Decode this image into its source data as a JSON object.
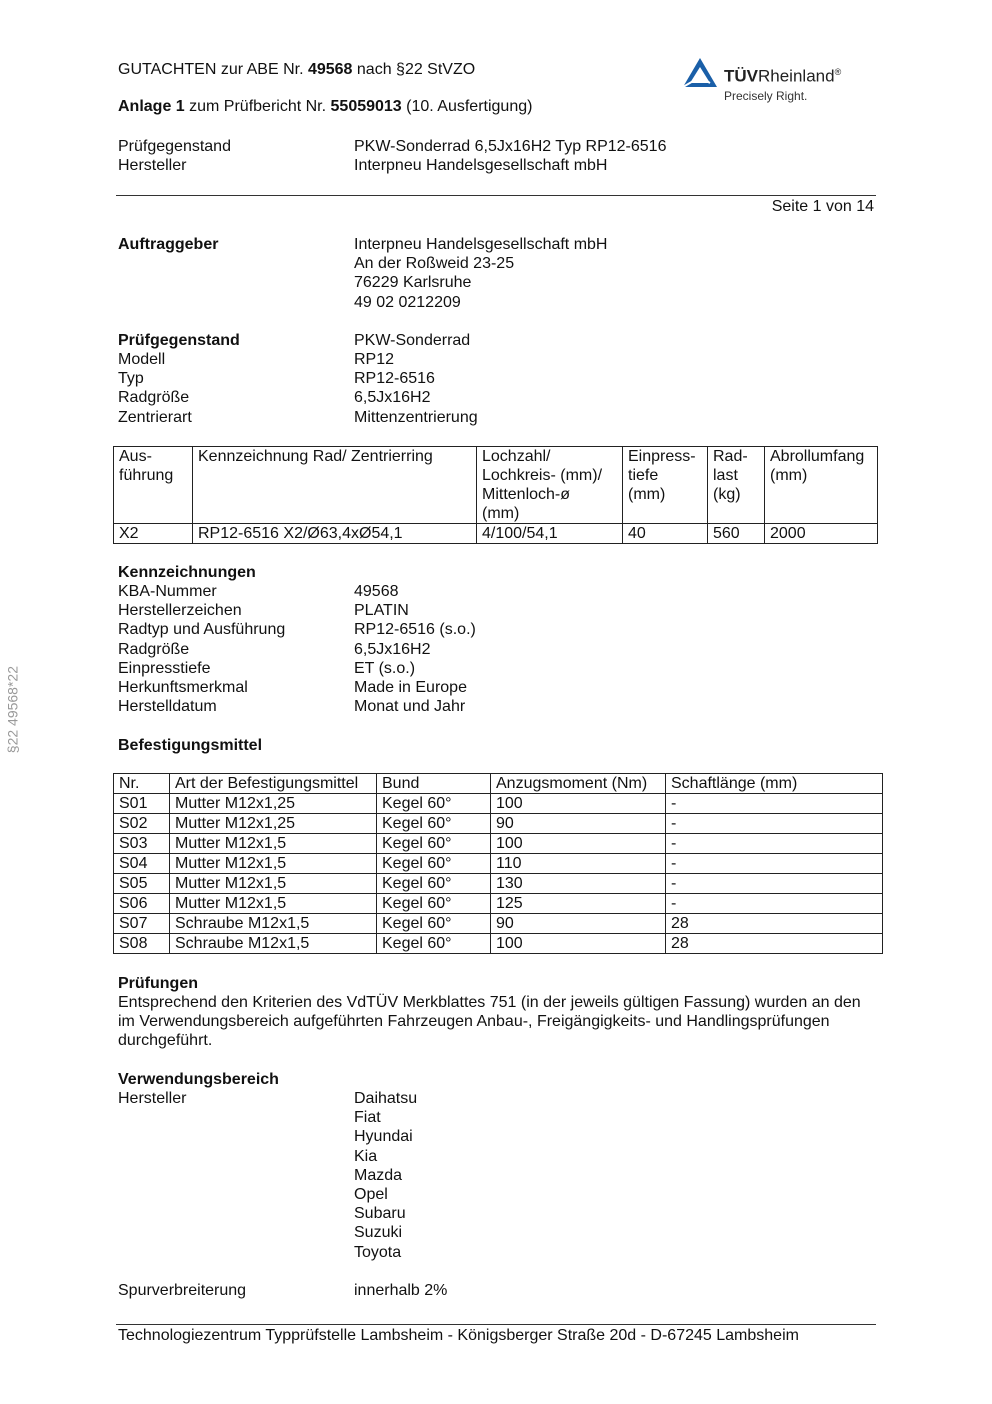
{
  "header": {
    "line1_pre": "GUTACHTEN zur ABE Nr. ",
    "line1_num": "49568",
    "line1_post": " nach §22 StVZO",
    "line2_pre": "Anlage 1",
    "line2_mid": " zum Prüfbericht Nr. ",
    "line2_num": "55059013",
    "line2_post": " (10. Ausfertigung)",
    "rows": [
      {
        "k": "Prüfgegenstand",
        "v": "PKW-Sonderrad 6,5Jx16H2 Typ RP12-6516"
      },
      {
        "k": "Hersteller",
        "v": "Interpneu Handelsgesellschaft mbH"
      }
    ],
    "page": "Seite 1 von 14"
  },
  "logo": {
    "brand_bold": "TÜV",
    "brand_rest": "Rheinland",
    "reg": "®",
    "tagline": "Precisely Right.",
    "color": "#1a5fa8"
  },
  "side_text": "§22  49568*22",
  "auftraggeber": {
    "label": "Auftraggeber",
    "lines": [
      "Interpneu Handelsgesellschaft mbH",
      "An der Roßweid 23-25",
      "76229 Karlsruhe",
      "49 02 0212209"
    ]
  },
  "pruef": {
    "label": "Prüfgegenstand",
    "value": "PKW-Sonderrad",
    "rows": [
      {
        "k": "Modell",
        "v": "RP12"
      },
      {
        "k": "Typ",
        "v": "RP12-6516"
      },
      {
        "k": "Radgröße",
        "v": "6,5Jx16H2"
      },
      {
        "k": "Zentrierart",
        "v": "Mittenzentrierung"
      }
    ]
  },
  "table1": {
    "headers": [
      "Aus-\nführung",
      "Kennzeichnung Rad/ Zentrierring",
      "Lochzahl/\nLochkreis- (mm)/\nMittenloch-ø\n(mm)",
      "Einpress-\ntiefe\n(mm)",
      "Rad-\nlast\n(kg)",
      "Abrollumfang\n(mm)"
    ],
    "rows": [
      [
        "X2",
        "RP12-6516 X2/Ø63,4xØ54,1",
        "4/100/54,1",
        "40",
        "560",
        "2000"
      ]
    ]
  },
  "kenn": {
    "label": "Kennzeichnungen",
    "rows": [
      {
        "k": "KBA-Nummer",
        "v": "49568"
      },
      {
        "k": "Herstellerzeichen",
        "v": "PLATIN"
      },
      {
        "k": "Radtyp und Ausführung",
        "v": "RP12-6516 (s.o.)"
      },
      {
        "k": "Radgröße",
        "v": "6,5Jx16H2"
      },
      {
        "k": "Einpresstiefe",
        "v": "ET (s.o.)"
      },
      {
        "k": "Herkunftsmerkmal",
        "v": "Made in Europe"
      },
      {
        "k": "Herstelldatum",
        "v": "Monat und Jahr"
      }
    ]
  },
  "befest": {
    "label": "Befestigungsmittel"
  },
  "table2": {
    "headers": [
      "Nr.",
      "Art der Befestigungsmittel",
      "Bund",
      "Anzugsmoment (Nm)",
      "Schaftlänge (mm)"
    ],
    "rows": [
      [
        "S01",
        "Mutter M12x1,25",
        "Kegel 60°",
        "100",
        "-"
      ],
      [
        "S02",
        "Mutter M12x1,25",
        "Kegel 60°",
        "90",
        "-"
      ],
      [
        "S03",
        "Mutter M12x1,5",
        "Kegel 60°",
        "100",
        "-"
      ],
      [
        "S04",
        "Mutter M12x1,5",
        "Kegel 60°",
        "110",
        "-"
      ],
      [
        "S05",
        "Mutter M12x1,5",
        "Kegel 60°",
        "130",
        "-"
      ],
      [
        "S06",
        "Mutter M12x1,5",
        "Kegel 60°",
        "125",
        "-"
      ],
      [
        "S07",
        "Schraube M12x1,5",
        "Kegel 60°",
        "90",
        "28"
      ],
      [
        "S08",
        "Schraube M12x1,5",
        "Kegel 60°",
        "100",
        "28"
      ]
    ]
  },
  "pruefungen": {
    "label": "Prüfungen",
    "text": "Entsprechend den Kriterien des VdTÜV Merkblattes 751 (in der jeweils gültigen Fassung) wurden an den im Verwendungsbereich aufgeführten Fahrzeugen Anbau-, Freigängigkeits- und Handlingsprüfungen durchgeführt."
  },
  "verwendung": {
    "label": "Verwendungsbereich",
    "hersteller_label": "Hersteller",
    "hersteller": [
      "Daihatsu",
      "Fiat",
      "Hyundai",
      "Kia",
      "Mazda",
      "Opel",
      "Subaru",
      "Suzuki",
      "Toyota"
    ],
    "spur_label": "Spurverbreiterung",
    "spur_value": "innerhalb 2%"
  },
  "footer": "Technologiezentrum Typprüfstelle Lambsheim - Königsberger Straße 20d - D-67245 Lambsheim"
}
